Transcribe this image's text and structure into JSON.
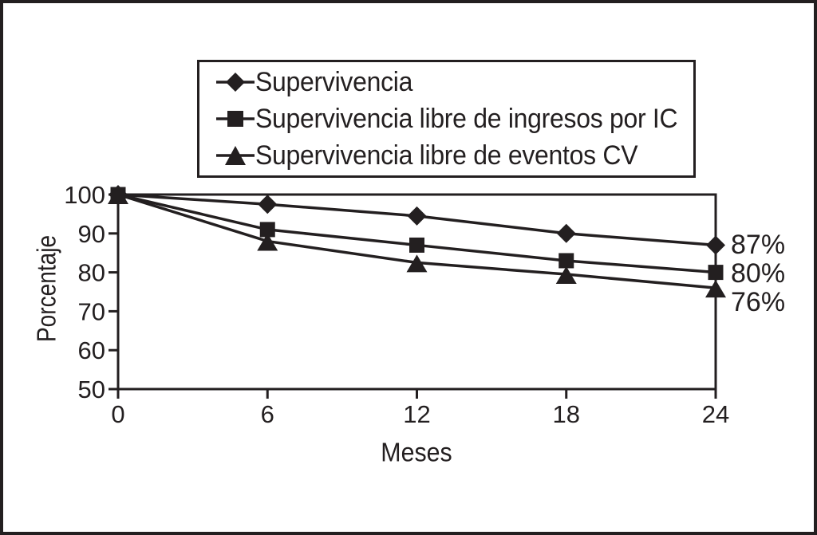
{
  "figure": {
    "background": "#ffffff",
    "ink_color": "#231f20"
  },
  "legend": {
    "items": [
      {
        "label": "Supervivencia",
        "marker": "diamond"
      },
      {
        "label": "Supervivencia libre de ingresos por IC",
        "marker": "square"
      },
      {
        "label": "Supervivencia libre de eventos CV",
        "marker": "triangle"
      }
    ]
  },
  "chart_data": {
    "type": "line",
    "title": "",
    "xlabel": "Meses",
    "ylabel": "Porcentaje",
    "x": [
      0,
      6,
      12,
      18,
      24
    ],
    "xticks": [
      0,
      6,
      12,
      18,
      24
    ],
    "yticks": [
      50,
      60,
      70,
      80,
      90,
      100
    ],
    "xlim": [
      0,
      24
    ],
    "ylim": [
      50,
      100
    ],
    "grid": false,
    "plot_border": true,
    "legend_position": "top-center",
    "series": [
      {
        "name": "Supervivencia",
        "marker": "diamond",
        "values": [
          100,
          97.5,
          94.5,
          90,
          87
        ],
        "end_label": "87%"
      },
      {
        "name": "Supervivencia libre de ingresos por IC",
        "marker": "square",
        "values": [
          100,
          91,
          87,
          83,
          80
        ],
        "end_label": "80%"
      },
      {
        "name": "Supervivencia libre de eventos CV",
        "marker": "triangle",
        "values": [
          100,
          88,
          82.5,
          79.5,
          76
        ],
        "end_label": "76%"
      }
    ]
  }
}
